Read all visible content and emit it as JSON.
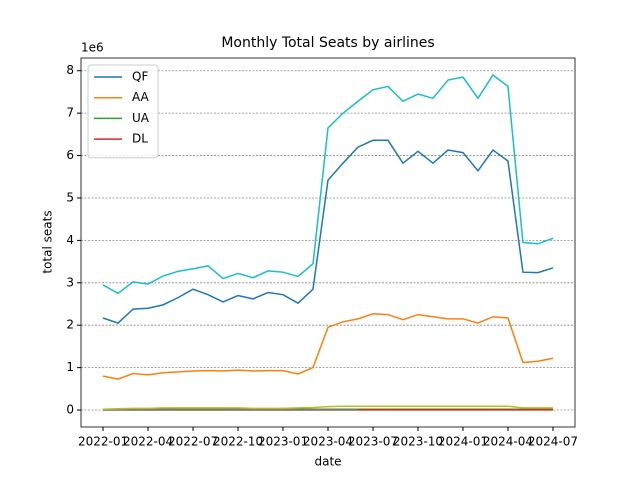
{
  "chart_data": {
    "type": "line",
    "title": "Monthly Total Seats by airlines",
    "xlabel": "date",
    "ylabel": "total seats",
    "y_offset_label": "1e6",
    "x": [
      "2022-01",
      "2022-02",
      "2022-03",
      "2022-04",
      "2022-05",
      "2022-06",
      "2022-07",
      "2022-08",
      "2022-09",
      "2022-10",
      "2022-11",
      "2022-12",
      "2023-01",
      "2023-02",
      "2023-03",
      "2023-04",
      "2023-05",
      "2023-06",
      "2023-07",
      "2023-08",
      "2023-09",
      "2023-10",
      "2023-11",
      "2023-12",
      "2024-01",
      "2024-02",
      "2024-03",
      "2024-04",
      "2024-05",
      "2024-06",
      "2024-07"
    ],
    "xtick_every": 3,
    "ylim": [
      -0.4,
      8.3
    ],
    "yticks": [
      0,
      1,
      2,
      3,
      4,
      5,
      6,
      7,
      8
    ],
    "grid": true,
    "legend": "upper left",
    "series": [
      {
        "name": "QF",
        "color": "#1f77b4",
        "values": [
          2.17,
          2.05,
          2.38,
          2.4,
          2.48,
          2.65,
          2.85,
          2.72,
          2.55,
          2.7,
          2.62,
          2.77,
          2.72,
          2.52,
          2.85,
          5.42,
          5.82,
          6.2,
          6.36,
          6.36,
          5.82,
          6.1,
          5.82,
          6.13,
          6.07,
          5.64,
          6.13,
          5.87,
          3.25,
          3.24,
          3.35
        ]
      },
      {
        "name": "AA",
        "color": "#ff7f0e",
        "values": [
          0.8,
          0.73,
          0.86,
          0.83,
          0.88,
          0.9,
          0.92,
          0.93,
          0.92,
          0.94,
          0.92,
          0.93,
          0.93,
          0.85,
          1.0,
          1.95,
          2.08,
          2.15,
          2.27,
          2.25,
          2.13,
          2.25,
          2.2,
          2.15,
          2.15,
          2.05,
          2.2,
          2.17,
          1.12,
          1.15,
          1.22
        ]
      },
      {
        "name": "UA",
        "color": "#2ca02c",
        "values": [
          0.02,
          0.02,
          0.02,
          0.02,
          0.02,
          0.02,
          0.02,
          0.02,
          0.02,
          0.02,
          0.02,
          0.02,
          0.02,
          0.02,
          0.02,
          0.02,
          0.02,
          0.02,
          0.02,
          0.02,
          0.02,
          0.02,
          0.02,
          0.02,
          0.02,
          0.02,
          0.02,
          0.02,
          0.02,
          0.02,
          0.02
        ]
      },
      {
        "name": "DL",
        "color": "#d62728",
        "values": [
          0.005,
          0.005,
          0.005,
          0.005,
          0.005,
          0.005,
          0.005,
          0.005,
          0.005,
          0.005,
          0.005,
          0.005,
          0.005,
          0.005,
          0.005,
          0.005,
          0.005,
          0.005,
          0.005,
          0.005,
          0.005,
          0.005,
          0.005,
          0.005,
          0.005,
          0.005,
          0.005,
          0.005,
          0.005,
          0.005,
          0.005
        ]
      },
      {
        "color": "#7f7f7f",
        "values": [
          0,
          0,
          0,
          0,
          0,
          0,
          0,
          0,
          0,
          0,
          0,
          0,
          0,
          0,
          0,
          0,
          0,
          0,
          null,
          null,
          null,
          null,
          null,
          null,
          null,
          null,
          null,
          null,
          null,
          null,
          null
        ]
      },
      {
        "color": "#bcbd22",
        "values": [
          0.02,
          0.03,
          0.04,
          0.04,
          0.05,
          0.05,
          0.05,
          0.05,
          0.05,
          0.05,
          0.04,
          0.04,
          0.04,
          0.05,
          0.06,
          0.08,
          0.09,
          0.09,
          0.09,
          0.09,
          0.09,
          0.09,
          0.09,
          0.09,
          0.09,
          0.09,
          0.09,
          0.09,
          0.05,
          0.05,
          0.05
        ]
      },
      {
        "color": "#17becf",
        "values": [
          2.95,
          2.75,
          3.02,
          2.97,
          3.16,
          3.27,
          3.33,
          3.4,
          3.1,
          3.22,
          3.12,
          3.28,
          3.25,
          3.15,
          3.45,
          6.65,
          7.0,
          7.28,
          7.55,
          7.63,
          7.28,
          7.45,
          7.35,
          7.78,
          7.85,
          7.35,
          7.9,
          7.63,
          3.95,
          3.92,
          4.05
        ]
      }
    ]
  }
}
